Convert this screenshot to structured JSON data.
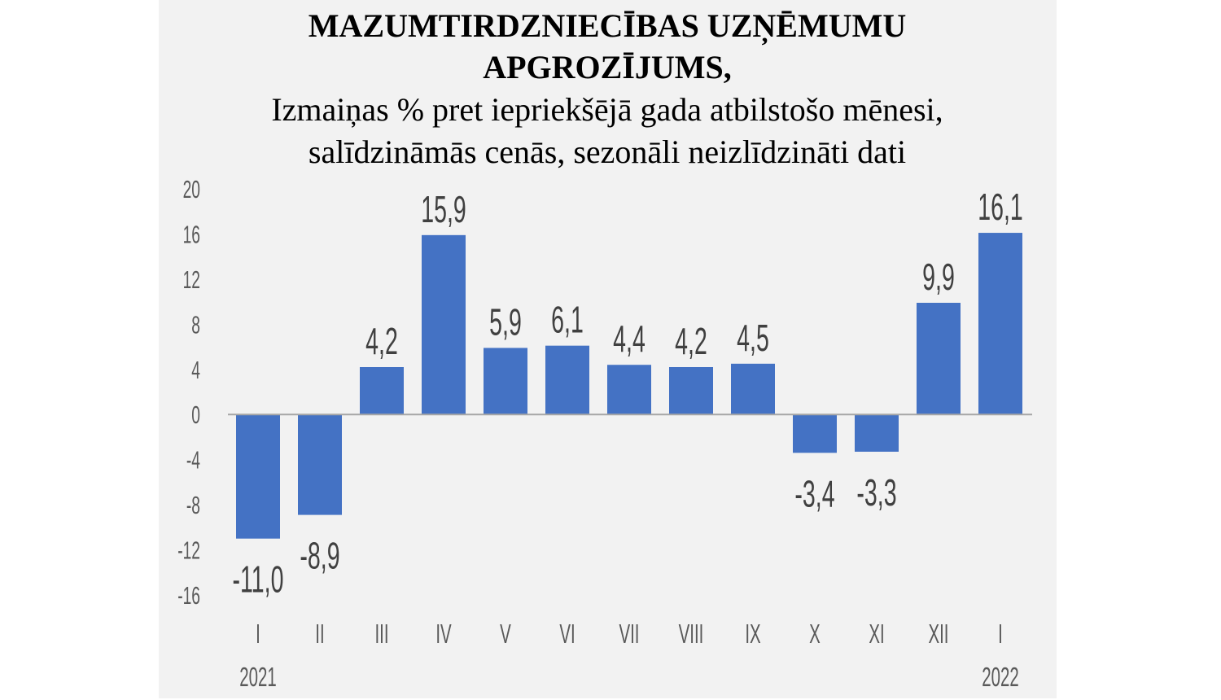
{
  "chart_data": {
    "type": "bar",
    "title": [
      "MAZUMTIRDZNIECĪBAS UZŅĒMUMU",
      "APGROZĪJUMS,"
    ],
    "subtitle": [
      "Izmaiņas % pret iepriekšējā gada atbilstošo mēnesi,",
      "salīdzināmās cenās, sezonāli neizlīdzināti dati"
    ],
    "categories": [
      "I",
      "II",
      "III",
      "IV",
      "V",
      "VI",
      "VII",
      "VIII",
      "IX",
      "X",
      "XI",
      "XII",
      "I"
    ],
    "year_labels": [
      {
        "index": 0,
        "label": "2021"
      },
      {
        "index": 12,
        "label": "2022"
      }
    ],
    "values": [
      -11.0,
      -8.9,
      4.2,
      15.9,
      5.9,
      6.1,
      4.4,
      4.2,
      4.5,
      -3.4,
      -3.3,
      9.9,
      16.1
    ],
    "value_labels": [
      "-11,0",
      "-8,9",
      "4,2",
      "15,9",
      "5,9",
      "6,1",
      "4,4",
      "4,2",
      "4,5",
      "-3,4",
      "-3,3",
      "9,9",
      "16,1"
    ],
    "yticks": [
      20,
      16,
      12,
      8,
      4,
      0,
      -4,
      -8,
      -12,
      -16
    ],
    "ylim": [
      -16,
      20
    ],
    "grid": false,
    "xlabel": "",
    "ylabel": "",
    "colors": {
      "bar": "#4472c4",
      "background": "#f2f2f2",
      "axis": "#a6a6a6"
    }
  }
}
